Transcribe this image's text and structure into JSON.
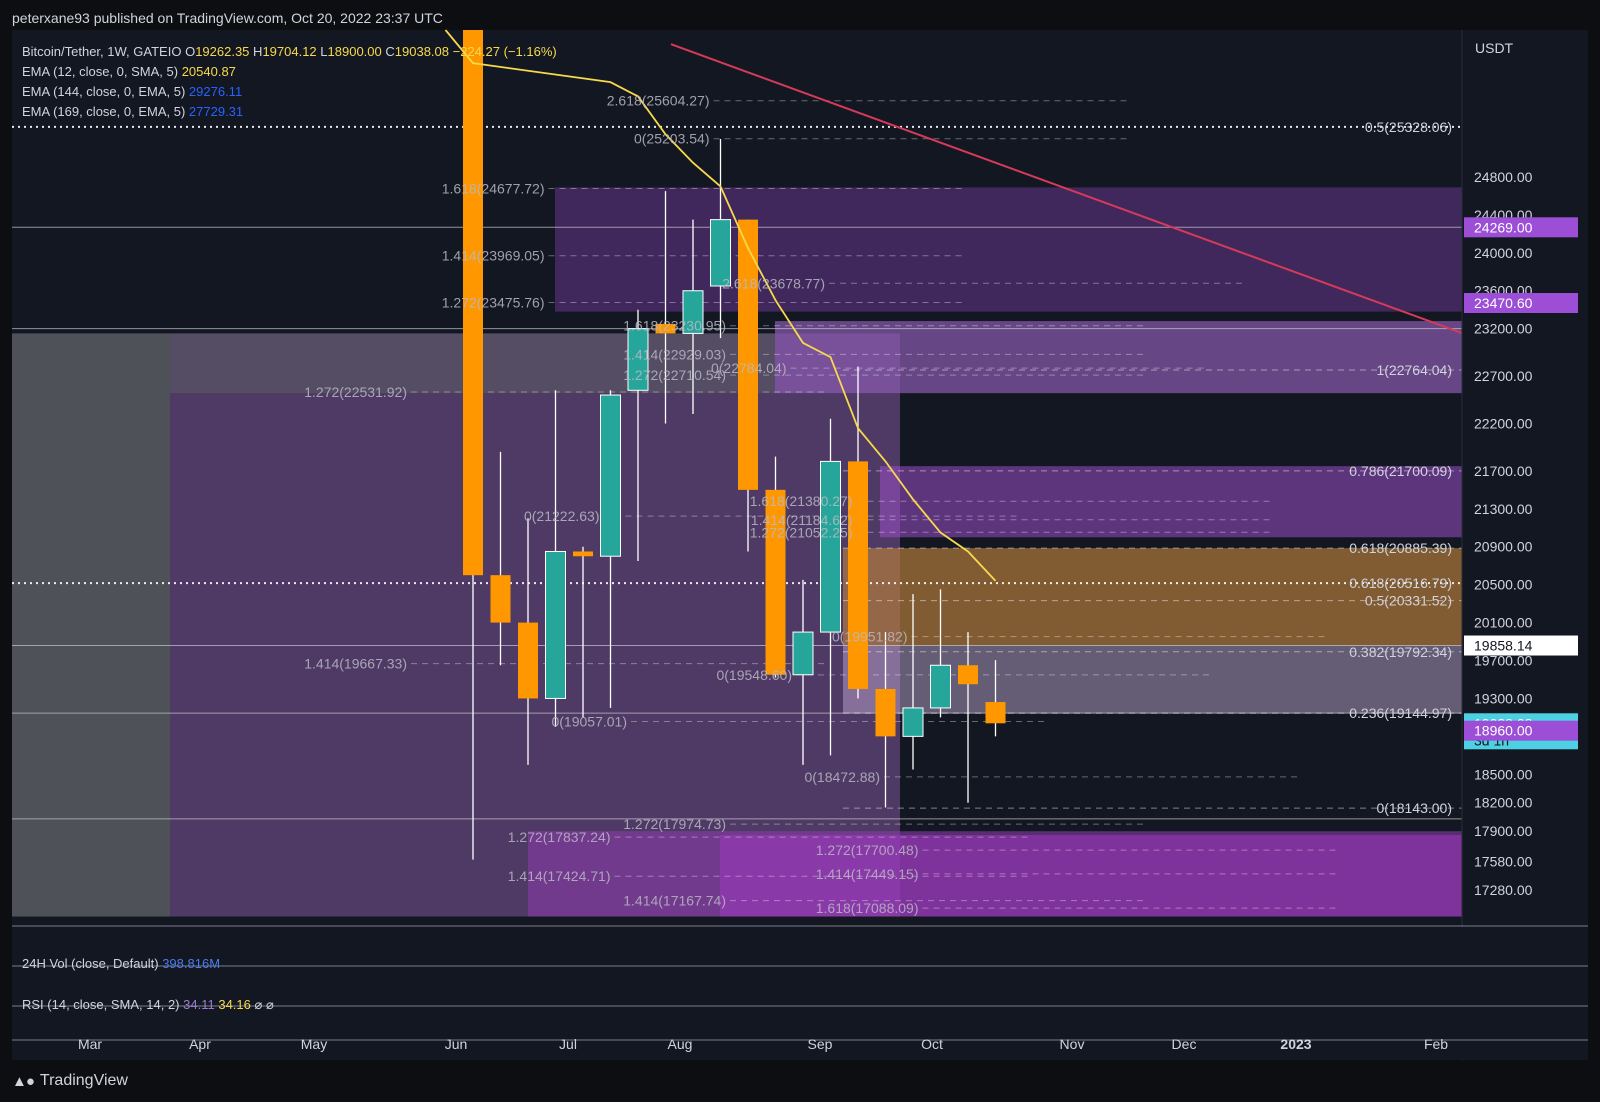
{
  "publisher": "peterxane93 published on TradingView.com, Oct 20, 2022 23:37 UTC",
  "footer_brand": "TradingView",
  "legend": {
    "symbol": "Bitcoin/Tether, 1W, GATEIO",
    "open_label": "O",
    "open": "19262.35",
    "high_label": "H",
    "high": "19704.12",
    "low_label": "L",
    "low": "18900.00",
    "close_label": "C",
    "close": "19038.08",
    "change": "−224.27 (−1.16%)",
    "ema1_label": "EMA (12, close, 0, SMA, 5)",
    "ema1_value": "20540.87",
    "ema2_label": "EMA (144, close, 0, EMA, 5)",
    "ema2_value": "29276.11",
    "ema3_label": "EMA (169, close, 0, EMA, 5)",
    "ema3_value": "27729.31"
  },
  "vol_pane": {
    "label": "24H Vol (close, Default)",
    "value": "398.816M"
  },
  "rsi_pane": {
    "label": "RSI (14, close, SMA, 14, 2)",
    "v1": "34.11",
    "v2": "34.16",
    "v3": "⌀",
    "v4": "⌀"
  },
  "colors": {
    "up": "#26a69a",
    "down": "#ff9800",
    "background": "#131722",
    "ema12": "#f7d94c",
    "trendline": "#d63a5a",
    "zone_purple": "#7e3fa8",
    "zone_orange": "#b07a3a",
    "zone_gray": "#5a5c63",
    "current_price": "#4dd0e1"
  },
  "chart_data": {
    "type": "candlestick",
    "symbol": "Bitcoin/Tether",
    "interval": "1W",
    "y_unit": "USDT",
    "ylim": [
      16900,
      26350
    ],
    "y_ticks": [
      24800,
      24400,
      24000,
      23600,
      23200,
      22700,
      22200,
      21700,
      21300,
      20900,
      20500,
      20100,
      19700,
      19300,
      18500,
      18200,
      17900,
      17580,
      17280
    ],
    "y_tick_labels": [
      "24800.00",
      "24400.00",
      "24000.00",
      "23600.00",
      "23200.00",
      "22700.00",
      "22200.00",
      "21700.00",
      "21300.00",
      "20900.00",
      "20500.00",
      "20100.00",
      "19700.00",
      "19300.00",
      "18500.00",
      "18200.00",
      "17900.00",
      "17580.00",
      "17280.00"
    ],
    "x_labels": [
      "Mar",
      "Apr",
      "May",
      "Jun",
      "Jul",
      "Aug",
      "Sep",
      "Oct",
      "Nov",
      "Dec",
      "2023",
      "Feb"
    ],
    "candles": [
      {
        "o": 29500,
        "h": 31500,
        "l": 17600,
        "c": 20600
      },
      {
        "o": 20600,
        "h": 21900,
        "l": 19650,
        "c": 20100
      },
      {
        "o": 20100,
        "h": 21200,
        "l": 18600,
        "c": 19300
      },
      {
        "o": 19300,
        "h": 22550,
        "l": 19000,
        "c": 20850
      },
      {
        "o": 20850,
        "h": 20900,
        "l": 19100,
        "c": 20800
      },
      {
        "o": 20800,
        "h": 22550,
        "l": 19200,
        "c": 22500
      },
      {
        "o": 22550,
        "h": 23400,
        "l": 20750,
        "c": 23200
      },
      {
        "o": 23250,
        "h": 24650,
        "l": 22200,
        "c": 23150
      },
      {
        "o": 23150,
        "h": 24350,
        "l": 22300,
        "c": 23600
      },
      {
        "o": 23650,
        "h": 25200,
        "l": 23100,
        "c": 24350
      },
      {
        "o": 24350,
        "h": 24350,
        "l": 20850,
        "c": 21500
      },
      {
        "o": 21500,
        "h": 21850,
        "l": 19520,
        "c": 19550
      },
      {
        "o": 19550,
        "h": 20550,
        "l": 18600,
        "c": 20000
      },
      {
        "o": 20000,
        "h": 22250,
        "l": 18700,
        "c": 21800
      },
      {
        "o": 21800,
        "h": 22800,
        "l": 19300,
        "c": 19400
      },
      {
        "o": 19400,
        "h": 20000,
        "l": 18150,
        "c": 18900
      },
      {
        "o": 18900,
        "h": 20400,
        "l": 18550,
        "c": 19200
      },
      {
        "o": 19200,
        "h": 20450,
        "l": 19100,
        "c": 19650
      },
      {
        "o": 19650,
        "h": 20000,
        "l": 18200,
        "c": 19450
      },
      {
        "o": 19262,
        "h": 19704,
        "l": 18900,
        "c": 19038
      }
    ],
    "ema12": [
      [
        -1,
        26400
      ],
      [
        0,
        26000
      ],
      [
        5,
        25800
      ],
      [
        6,
        25650
      ],
      [
        7,
        25250
      ],
      [
        8,
        24950
      ],
      [
        9,
        24700
      ],
      [
        10,
        24050
      ],
      [
        11,
        23500
      ],
      [
        12,
        23050
      ],
      [
        13,
        22900
      ],
      [
        14,
        22150
      ],
      [
        15,
        21800
      ],
      [
        16,
        21400
      ],
      [
        17,
        21050
      ],
      [
        18,
        20850
      ],
      [
        19,
        20540
      ]
    ],
    "trendline": {
      "from": [
        7.2,
        26200
      ],
      "to": [
        36,
        23150
      ]
    },
    "fib_levels": [
      {
        "label": "0.5(25328.06)",
        "price": 25328.06,
        "style": "dotted-white"
      },
      {
        "label": "1(22764.04)",
        "price": 22764.04
      },
      {
        "label": "0.786(21700.09)",
        "price": 21700.09
      },
      {
        "label": "0.618(20885.39)",
        "price": 20885.39
      },
      {
        "label": "0.618(20516.79)",
        "price": 20516.79,
        "style": "dotted-white"
      },
      {
        "label": "0.5(20331.52)",
        "price": 20331.52
      },
      {
        "label": "0.382(19792.34)",
        "price": 19792.34
      },
      {
        "label": "0.236(19144.97)",
        "price": 19144.97
      },
      {
        "label": "0(18143.00)",
        "price": 18143.0
      }
    ],
    "inner_fib_labels": [
      {
        "label": "2.618(25604.27)",
        "price": 25604.27,
        "anchor": 8.6
      },
      {
        "label": "0(25203.54)",
        "price": 25203.54,
        "anchor": 8.6
      },
      {
        "label": "1.618(24677.72)",
        "price": 24677.72,
        "anchor": 2.6
      },
      {
        "label": "1.414(23969.05)",
        "price": 23969.05,
        "anchor": 2.6
      },
      {
        "label": "1.272(23475.76)",
        "price": 23475.76,
        "anchor": 2.6
      },
      {
        "label": "2.618(23678.77)",
        "price": 23678.77,
        "anchor": 12.8
      },
      {
        "label": "1.618(23230.95)",
        "price": 23230.95,
        "anchor": 9.2
      },
      {
        "label": "1.414(22929.03)",
        "price": 22929.03,
        "anchor": 9.2
      },
      {
        "label": "1.272(22710.54)",
        "price": 22710.54,
        "anchor": 9.2
      },
      {
        "label": "0(22784.04)",
        "price": 22784.04,
        "anchor": 11.4
      },
      {
        "label": "1.272(22531.92)",
        "price": 22531.92,
        "anchor": -2.4
      },
      {
        "label": "0(21222.63)",
        "price": 21222.63,
        "anchor": 4.6
      },
      {
        "label": "1.618(21380.27)",
        "price": 21380.27,
        "anchor": 13.8
      },
      {
        "label": "1.414(21184.62)",
        "price": 21184.62,
        "anchor": 13.8
      },
      {
        "label": "1.272(21052.25)",
        "price": 21052.25,
        "anchor": 13.8
      },
      {
        "label": "0(19951.82)",
        "price": 19951.82,
        "anchor": 15.8
      },
      {
        "label": "1.414(19667.33)",
        "price": 19667.33,
        "anchor": -2.4
      },
      {
        "label": "0(19548.60)",
        "price": 19548.6,
        "anchor": 11.6
      },
      {
        "label": "0(19057.01)",
        "price": 19057.01,
        "anchor": 5.6
      },
      {
        "label": "0(18472.88)",
        "price": 18472.88,
        "anchor": 14.8
      },
      {
        "label": "1.272(17974.73)",
        "price": 17974.73,
        "anchor": 9.2
      },
      {
        "label": "1.272(17837.24)",
        "price": 17837.24,
        "anchor": 5.0
      },
      {
        "label": "1.272(17700.48)",
        "price": 17700.48,
        "anchor": 16.2
      },
      {
        "label": "1.414(17449.15)",
        "price": 17449.15,
        "anchor": 16.2
      },
      {
        "label": "1.414(17424.71)",
        "price": 17424.71,
        "anchor": 5.0
      },
      {
        "label": "1.414(17167.74)",
        "price": 17167.74,
        "anchor": 9.2
      },
      {
        "label": "1.618(17088.09)",
        "price": 17088.09,
        "anchor": 16.2
      }
    ],
    "price_tags": [
      {
        "label": "24269.00",
        "price": 24269.0,
        "color": "#9c4fd6"
      },
      {
        "label": "23470.60",
        "price": 23470.6,
        "color": "#9c4fd6"
      },
      {
        "label": "19858.14",
        "price": 19858.14,
        "color": "#ffffff"
      },
      {
        "label": "19038.08",
        "label2": "3d 1h",
        "price": 19038.08,
        "color": "#4dd0e1"
      },
      {
        "label": "18960.00",
        "price": 18960.0,
        "color": "#9c4fd6"
      }
    ]
  }
}
